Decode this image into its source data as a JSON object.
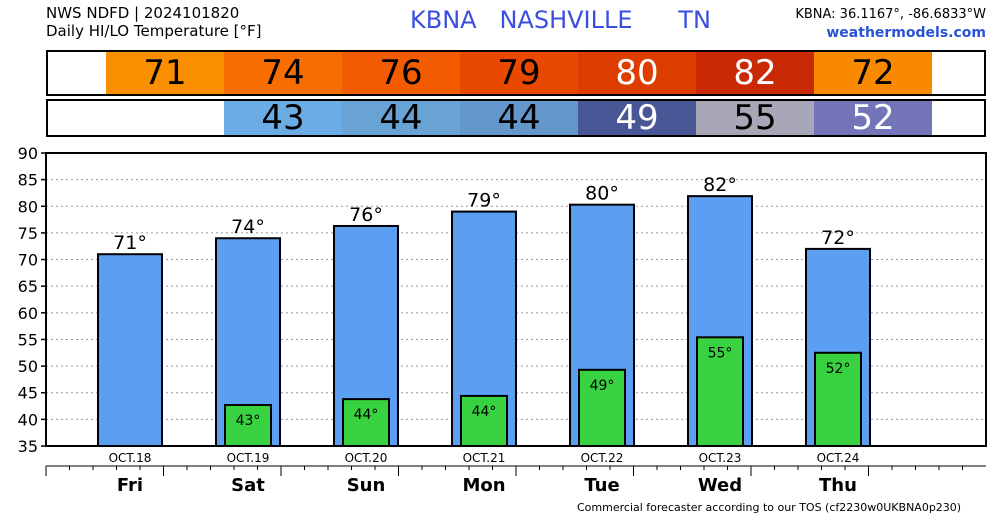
{
  "header": {
    "line1": "NWS NDFD | 2024101820",
    "line2": "Daily HI/LO Temperature [°F]",
    "title": "KBNA   NASHVILLE      TN",
    "coords": "KBNA: 36.1167°, -86.6833°W",
    "site": "weathermodels.com"
  },
  "footer": "Commercial forecaster according to our TOS (cf2230w0UKBNA0p230)",
  "strips": {
    "hi": [
      {
        "value": "71",
        "color": "#f98e00",
        "text_color": "#000000"
      },
      {
        "value": "74",
        "color": "#f76d00",
        "text_color": "#000000"
      },
      {
        "value": "76",
        "color": "#f25b00",
        "text_color": "#000000"
      },
      {
        "value": "79",
        "color": "#e94800",
        "text_color": "#000000"
      },
      {
        "value": "80",
        "color": "#de3d00",
        "text_color": "#ffffff"
      },
      {
        "value": "82",
        "color": "#c92a05",
        "text_color": "#ffffff"
      },
      {
        "value": "72",
        "color": "#f98a00",
        "text_color": "#000000"
      }
    ],
    "lo": [
      {
        "value": "43",
        "color": "#6aace3",
        "text_color": "#000000"
      },
      {
        "value": "44",
        "color": "#69a3d6",
        "text_color": "#000000"
      },
      {
        "value": "44",
        "color": "#6497cb",
        "text_color": "#000000"
      },
      {
        "value": "49",
        "color": "#4a5797",
        "text_color": "#ffffff"
      },
      {
        "value": "55",
        "color": "#a8a7b7",
        "text_color": "#000000"
      },
      {
        "value": "52",
        "color": "#7474b8",
        "text_color": "#ffffff"
      }
    ]
  },
  "chart_data": {
    "type": "bar",
    "categories": [
      "OCT.18",
      "OCT.19",
      "OCT.20",
      "OCT.21",
      "OCT.22",
      "OCT.23",
      "OCT.24"
    ],
    "days": [
      "Fri",
      "Sat",
      "Sun",
      "Mon",
      "Tue",
      "Wed",
      "Thu"
    ],
    "ylim": [
      35,
      90
    ],
    "yticks": [
      35,
      40,
      45,
      50,
      55,
      60,
      65,
      70,
      75,
      80,
      85,
      90
    ],
    "grid": true,
    "series": [
      {
        "values": [
          71,
          74,
          76.3,
          79,
          80.3,
          81.9,
          72
        ],
        "labels": [
          "71°",
          "74°",
          "76°",
          "79°",
          "80°",
          "82°",
          "72°"
        ],
        "color": "#5b9ef2"
      },
      {
        "values": [
          null,
          42.7,
          43.8,
          44.4,
          49.3,
          55.4,
          52.5
        ],
        "labels": [
          "",
          "43°",
          "44°",
          "44°",
          "49°",
          "55°",
          "52°"
        ],
        "color": "#38d13f"
      }
    ]
  }
}
